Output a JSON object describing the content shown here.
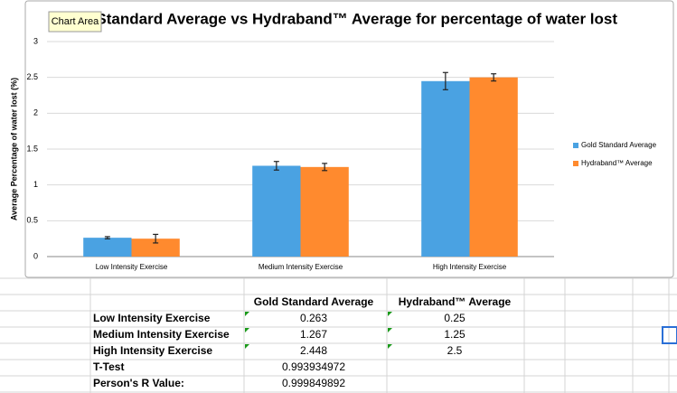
{
  "chart_data": {
    "type": "bar",
    "title": "Gold Standard Average vs Hydraband™ Average for percentage of water lost",
    "y_label": "Average Percentage of water lost (%)",
    "categories": [
      "Low Intensity Exercise",
      "Medium Intensity Exercise",
      "High Intensity Exercise"
    ],
    "series": [
      {
        "name": "Gold Standard Average",
        "color": "#4aa2e2",
        "values": [
          0.263,
          1.267,
          2.448
        ],
        "errors": [
          0.015,
          0.06,
          0.12
        ]
      },
      {
        "name": "Hydraband™ Average",
        "color": "#ff8a2e",
        "values": [
          0.25,
          1.25,
          2.5
        ],
        "errors": [
          0.06,
          0.05,
          0.05
        ]
      }
    ],
    "ylim": [
      0,
      3
    ],
    "yticks": [
      0,
      0.5,
      1,
      1.5,
      2,
      2.5,
      3
    ],
    "grid": true,
    "legend": "right",
    "tooltip": "Chart Area"
  },
  "table": {
    "header": [
      "Gold Standard Average",
      "Hydraband™ Average"
    ],
    "rows": [
      [
        "Low Intensity Exercise",
        "0.263",
        "0.25"
      ],
      [
        "Medium Intensity Exercise",
        "1.267",
        "1.25"
      ],
      [
        "High Intensity Exercise",
        "2.448",
        "2.5"
      ],
      [
        "T-Test",
        "0.993934972",
        ""
      ],
      [
        "Person's R Value:",
        "0.999849892",
        ""
      ]
    ]
  }
}
